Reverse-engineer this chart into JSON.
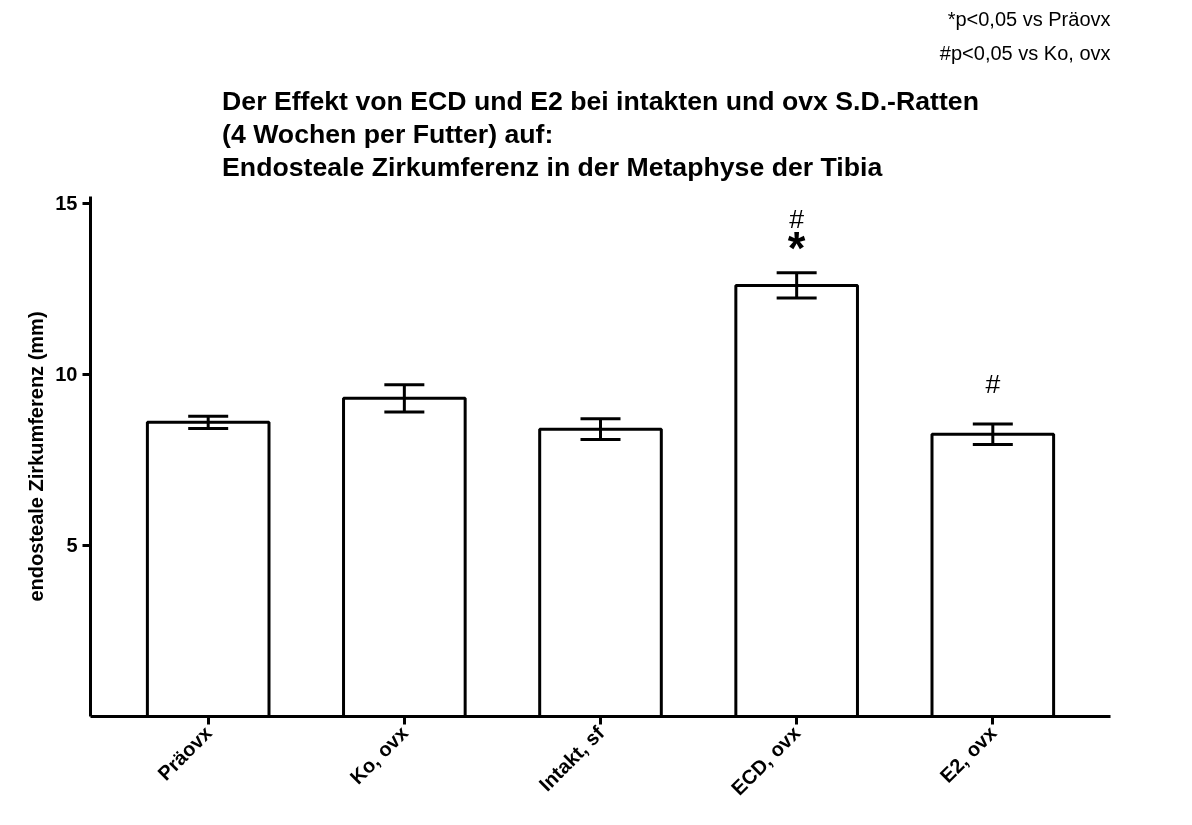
{
  "chart_data": {
    "type": "bar",
    "title": "Der Effekt von ECD und E2 bei intakten und ovx S.D.-Ratten\n(4 Wochen per  Futter) auf:\nEndosteale Zirkumferenz in der Metaphyse der Tibia",
    "ylabel": "endosteale Zirkumferenz (mm)",
    "categories": [
      "Präovx",
      "Ko, ovx",
      "Intakt, sf",
      "ECD, ovx",
      "E2, ovx"
    ],
    "values": [
      8.6,
      9.3,
      8.4,
      12.6,
      8.25
    ],
    "errors": [
      0.18,
      0.4,
      0.3,
      0.37,
      0.3
    ],
    "color": "#ffffff",
    "ylim": [
      0,
      15.2
    ],
    "yticks": [
      5,
      10,
      15
    ],
    "grid": false,
    "value_labels": [
      null,
      null,
      null,
      "#\n*",
      "#"
    ],
    "annotations": [
      "*p<0,05 vs Präovx",
      "#p<0,05 vs Ko, ovx"
    ]
  }
}
